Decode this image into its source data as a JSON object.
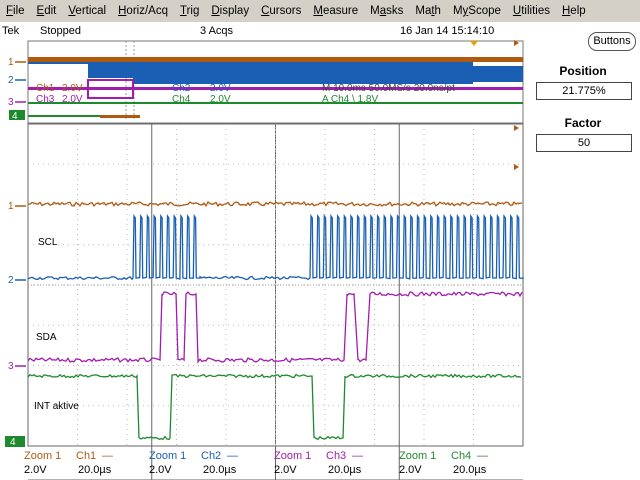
{
  "menu": {
    "items": [
      {
        "label": "File",
        "key": "F",
        "rest": "ile"
      },
      {
        "label": "Edit",
        "key": "E",
        "rest": "dit"
      },
      {
        "label": "Vertical",
        "key": "V",
        "rest": "ertical"
      },
      {
        "label": "Horiz/Acq",
        "key": "H",
        "rest": "oriz/Acq"
      },
      {
        "label": "Trig",
        "key": "T",
        "rest": "rig"
      },
      {
        "label": "Display",
        "key": "D",
        "rest": "isplay"
      },
      {
        "label": "Cursors",
        "key": "C",
        "rest": "ursors"
      },
      {
        "label": "Measure",
        "key": "M",
        "rest": "easure"
      },
      {
        "label": "Masks",
        "key": "a",
        "pre": "M",
        "rest": "sks"
      },
      {
        "label": "Math",
        "key": "t",
        "pre": "Ma",
        "rest": "h"
      },
      {
        "label": "MyScope",
        "key": "y",
        "pre": "M",
        "rest": "Scope"
      },
      {
        "label": "Utilities",
        "key": "U",
        "rest": "tilities"
      },
      {
        "label": "Help",
        "key": "H",
        "rest": "elp"
      }
    ]
  },
  "status": {
    "brand": "Tek",
    "state": "Stopped",
    "acqs": "3 Acqs",
    "datetime": "16 Jan 14 15:14:10"
  },
  "side": {
    "buttons_label": "Buttons",
    "position_label": "Position",
    "position_value": "21.775%",
    "factor_label": "Factor",
    "factor_value": "50"
  },
  "overview": {
    "ch1": "Ch1",
    "ch1_scale": "2.0V",
    "ch2": "Ch2",
    "ch2_scale": "2.0V",
    "ch3": "Ch3",
    "ch3_scale": "2.0V",
    "ch4": "Ch4",
    "ch4_scale": "2.0V",
    "timebase": "M 10.0ms  50.0MS/s  20.0ns/pt",
    "trigger": "A  Ch4  \\  1.8V"
  },
  "waveform_labels": {
    "scl": "SCL",
    "sda": "SDA",
    "int": "INT aktive"
  },
  "channel_markers": {
    "ch1": "1",
    "ch2": "2",
    "ch3": "3",
    "ch4": "4"
  },
  "readouts": [
    {
      "zoom": "Zoom 1",
      "ch": "Ch1",
      "volts": "2.0V",
      "time": "20.0µs",
      "color": "#b05a10"
    },
    {
      "zoom": "Zoom 1",
      "ch": "Ch2",
      "volts": "2.0V",
      "time": "20.0µs",
      "color": "#1a5fb4"
    },
    {
      "zoom": "Zoom 1",
      "ch": "Ch3",
      "volts": "2.0V",
      "time": "20.0µs",
      "color": "#a21caf"
    },
    {
      "zoom": "Zoom 1",
      "ch": "Ch4",
      "volts": "2.0V",
      "time": "20.0µs",
      "color": "#1e8a2e"
    }
  ],
  "colors": {
    "ch1": "#b05a10",
    "ch2": "#1a5fb4",
    "ch3": "#a21caf",
    "ch4": "#1e8a2e",
    "grid": "#888888",
    "trigger": "#e8a000"
  }
}
